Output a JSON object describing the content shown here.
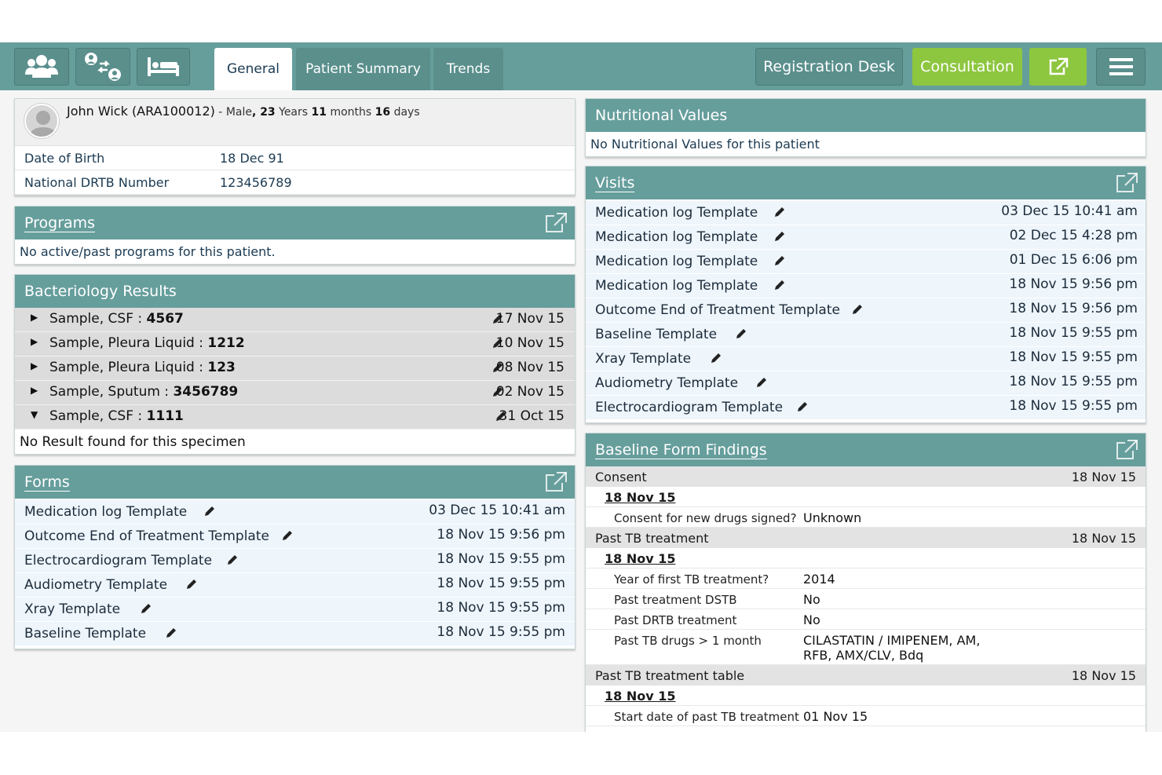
{
  "header": {
    "icons": [
      "patients-icon",
      "transfer-icon",
      "bed-icon"
    ],
    "tabs": [
      {
        "label": "General",
        "active": true
      },
      {
        "label": "Patient Summary",
        "active": false
      },
      {
        "label": "Trends",
        "active": false
      }
    ],
    "registration_label": "Registration Desk",
    "consultation_label": "Consultation"
  },
  "colors": {
    "teal": "#669e9c",
    "teal_dark": "#5a8f8c",
    "green": "#8dc63f",
    "row_bg": "#eef5fb"
  },
  "patient": {
    "name": "John Wick (ARA100012)",
    "sep": " - ",
    "gender": "Male",
    "comma": ", ",
    "years": "23",
    "years_label": " Years ",
    "months": "11",
    "months_label": " months ",
    "days": "16",
    "days_label": " days",
    "details": [
      {
        "label": "Date of Birth",
        "value": "18 Dec 91"
      },
      {
        "label": "National DRTB Number",
        "value": "123456789"
      }
    ]
  },
  "programs": {
    "title": "Programs",
    "empty": "No active/past programs for this patient."
  },
  "bacteriology": {
    "title": "Bacteriology Results",
    "samples": [
      {
        "label": "Sample, CSF : ",
        "id": "4567",
        "date": "17 Nov 15",
        "expanded": false
      },
      {
        "label": "Sample, Pleura Liquid : ",
        "id": "1212",
        "date": "10 Nov 15",
        "expanded": false
      },
      {
        "label": "Sample, Pleura Liquid : ",
        "id": "123",
        "date": "08 Nov 15",
        "expanded": false
      },
      {
        "label": "Sample, Sputum : ",
        "id": "3456789",
        "date": "02 Nov 15",
        "expanded": false
      },
      {
        "label": "Sample, CSF : ",
        "id": "1111",
        "date": "31 Oct 15",
        "expanded": true
      }
    ],
    "empty": "No Result found for this specimen"
  },
  "forms": {
    "title": "Forms",
    "items": [
      {
        "name": "Medication log Template",
        "date": "03 Dec 15 10:41 am"
      },
      {
        "name": "Outcome End of Treatment Template",
        "date": "18 Nov 15 9:56 pm"
      },
      {
        "name": "Electrocardiogram Template",
        "date": "18 Nov 15 9:55 pm"
      },
      {
        "name": "Audiometry Template",
        "date": "18 Nov 15 9:55 pm"
      },
      {
        "name": "Xray Template",
        "date": "18 Nov 15 9:55 pm"
      },
      {
        "name": "Baseline Template",
        "date": "18 Nov 15 9:55 pm"
      }
    ]
  },
  "nutrition": {
    "title": "Nutritional Values",
    "empty": "No Nutritional Values for this patient"
  },
  "visits": {
    "title": "Visits",
    "items": [
      {
        "name": "Medication log Template",
        "date": "03 Dec 15 10:41 am"
      },
      {
        "name": "Medication log Template",
        "date": "02 Dec 15 4:28 pm"
      },
      {
        "name": "Medication log Template",
        "date": "01 Dec 15 6:06 pm"
      },
      {
        "name": "Medication log Template",
        "date": "18 Nov 15 9:56 pm"
      },
      {
        "name": "Outcome End of Treatment Template",
        "date": "18 Nov 15 9:56 pm"
      },
      {
        "name": "Baseline Template",
        "date": "18 Nov 15 9:55 pm"
      },
      {
        "name": "Xray Template",
        "date": "18 Nov 15 9:55 pm"
      },
      {
        "name": "Audiometry Template",
        "date": "18 Nov 15 9:55 pm"
      },
      {
        "name": "Electrocardiogram Template",
        "date": "18 Nov 15 9:55 pm"
      }
    ]
  },
  "baseline": {
    "title": "Baseline Form Findings",
    "sections": [
      {
        "name": "Consent",
        "date": "18 Nov 15",
        "sub_date": "18 Nov 15",
        "rows": [
          {
            "label": "Consent for new drugs signed?",
            "value": "Unknown"
          }
        ]
      },
      {
        "name": "Past TB treatment",
        "date": "18 Nov 15",
        "sub_date": "18 Nov 15",
        "rows": [
          {
            "label": "Year of first TB treatment?",
            "value": "2014"
          },
          {
            "label": "Past treatment DSTB",
            "value": "No"
          },
          {
            "label": "Past DRTB treatment",
            "value": "No"
          },
          {
            "label": "Past TB drugs > 1 month",
            "value": "CILASTATIN / IMIPENEM, AM,",
            "value2": "RFB, AMX/CLV, Bdq"
          }
        ]
      },
      {
        "name": "Past TB treatment table",
        "date": "18 Nov 15",
        "sub_date": "18 Nov 15",
        "rows": [
          {
            "label": "Start date of past TB treatment",
            "value": "01 Nov 15"
          }
        ]
      }
    ]
  }
}
